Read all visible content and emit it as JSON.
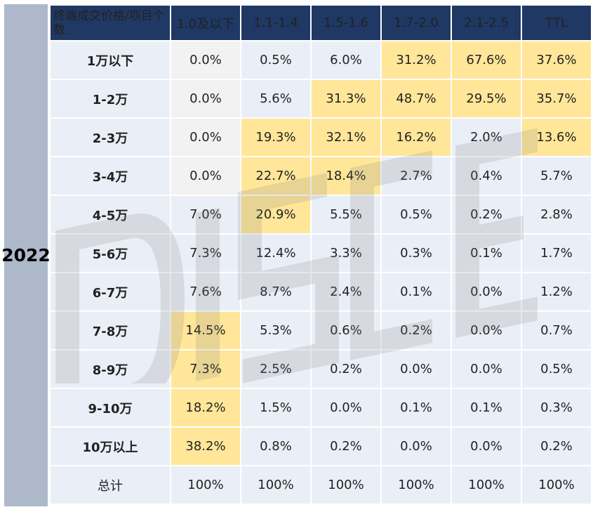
{
  "year": "2022",
  "header": {
    "corner": "终端成交价格/项目个数",
    "columns": [
      "1.0及以下",
      "1.1-1.4",
      "1.5-1.6",
      "1.7-2.0",
      "2.1-2.5",
      "TTL"
    ]
  },
  "rows": [
    {
      "label": "1万以下",
      "cells": [
        "0.0%",
        "0.5%",
        "6.0%",
        "31.2%",
        "67.6%",
        "37.6%"
      ]
    },
    {
      "label": "1-2万",
      "cells": [
        "0.0%",
        "5.6%",
        "31.3%",
        "48.7%",
        "29.5%",
        "35.7%"
      ]
    },
    {
      "label": "2-3万",
      "cells": [
        "0.0%",
        "19.3%",
        "32.1%",
        "16.2%",
        "2.0%",
        "13.6%"
      ]
    },
    {
      "label": "3-4万",
      "cells": [
        "0.0%",
        "22.7%",
        "18.4%",
        "2.7%",
        "0.4%",
        "5.7%"
      ]
    },
    {
      "label": "4-5万",
      "cells": [
        "7.0%",
        "20.9%",
        "5.5%",
        "0.5%",
        "0.2%",
        "2.8%"
      ]
    },
    {
      "label": "5-6万",
      "cells": [
        "7.3%",
        "12.4%",
        "3.3%",
        "0.3%",
        "0.1%",
        "1.7%"
      ]
    },
    {
      "label": "6-7万",
      "cells": [
        "7.6%",
        "8.7%",
        "2.4%",
        "0.1%",
        "0.0%",
        "1.2%"
      ]
    },
    {
      "label": "7-8万",
      "cells": [
        "14.5%",
        "5.3%",
        "0.6%",
        "0.2%",
        "0.0%",
        "0.7%"
      ]
    },
    {
      "label": "8-9万",
      "cells": [
        "7.3%",
        "2.5%",
        "0.2%",
        "0.0%",
        "0.0%",
        "0.5%"
      ]
    },
    {
      "label": "9-10万",
      "cells": [
        "18.2%",
        "1.5%",
        "0.0%",
        "0.1%",
        "0.1%",
        "0.3%"
      ]
    },
    {
      "label": "10万以上",
      "cells": [
        "38.2%",
        "0.8%",
        "0.2%",
        "0.0%",
        "0.0%",
        "0.2%"
      ]
    },
    {
      "label": "总计",
      "cells": [
        "100%",
        "100%",
        "100%",
        "100%",
        "100%",
        "100%"
      ]
    }
  ],
  "chart_data": {
    "type": "table",
    "columns": [
      "1.0及以下",
      "1.1-1.4",
      "1.5-1.6",
      "1.7-2.0",
      "2.1-2.5",
      "TTL"
    ],
    "rows": [
      "1万以下",
      "1-2万",
      "2-3万",
      "3-4万",
      "4-5万",
      "5-6万",
      "6-7万",
      "7-8万",
      "8-9万",
      "9-10万",
      "10万以上",
      "总计"
    ],
    "values": [
      [
        0.0,
        0.5,
        6.0,
        31.2,
        67.6,
        37.6
      ],
      [
        0.0,
        5.6,
        31.3,
        48.7,
        29.5,
        35.7
      ],
      [
        0.0,
        19.3,
        32.1,
        16.2,
        2.0,
        13.6
      ],
      [
        0.0,
        22.7,
        18.4,
        2.7,
        0.4,
        5.7
      ],
      [
        7.0,
        20.9,
        5.5,
        0.5,
        0.2,
        2.8
      ],
      [
        7.3,
        12.4,
        3.3,
        0.3,
        0.1,
        1.7
      ],
      [
        7.6,
        8.7,
        2.4,
        0.1,
        0.0,
        1.2
      ],
      [
        14.5,
        5.3,
        0.6,
        0.2,
        0.0,
        0.7
      ],
      [
        7.3,
        2.5,
        0.2,
        0.0,
        0.0,
        0.5
      ],
      [
        18.2,
        1.5,
        0.0,
        0.1,
        0.1,
        0.3
      ],
      [
        38.2,
        0.8,
        0.2,
        0.0,
        0.0,
        0.2
      ],
      [
        100,
        100,
        100,
        100,
        100,
        100
      ]
    ],
    "highlighted_cells": [
      [
        0,
        3
      ],
      [
        0,
        4
      ],
      [
        0,
        5
      ],
      [
        1,
        2
      ],
      [
        1,
        3
      ],
      [
        1,
        4
      ],
      [
        1,
        5
      ],
      [
        2,
        1
      ],
      [
        2,
        2
      ],
      [
        2,
        3
      ],
      [
        2,
        5
      ],
      [
        3,
        1
      ],
      [
        3,
        2
      ],
      [
        4,
        1
      ],
      [
        7,
        0
      ],
      [
        8,
        0
      ],
      [
        9,
        0
      ],
      [
        10,
        0
      ]
    ],
    "gray_cells": [
      [
        0,
        0
      ],
      [
        1,
        0
      ],
      [
        2,
        0
      ],
      [
        3,
        0
      ]
    ]
  },
  "colors": {
    "header_bg": "#1f3864",
    "cell_bg": "#eaeff7",
    "highlight": "#ffe699",
    "gray": "#f2f2f2",
    "year_bg": "#adb9ca"
  },
  "watermark": "DISCEN"
}
